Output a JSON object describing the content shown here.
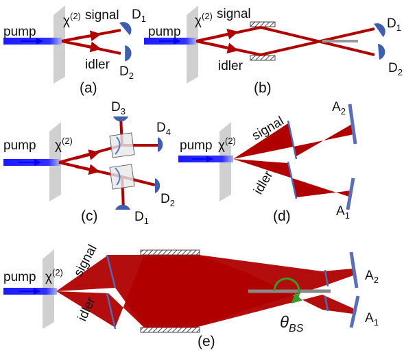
{
  "panels": [
    {
      "label": "(a)",
      "pump": "pump",
      "chi": {
        "main": "χ",
        "sup": "(2)"
      },
      "signal": "signal",
      "idler": "idler",
      "detectors": [
        {
          "main": "D",
          "sub": "1"
        },
        {
          "main": "D",
          "sub": "2"
        }
      ]
    },
    {
      "label": "(b)",
      "pump": "pump",
      "chi": {
        "main": "χ",
        "sup": "(2)"
      },
      "signal": "signal",
      "idler": "idler",
      "detectors": [
        {
          "main": "D",
          "sub": "1"
        },
        {
          "main": "D",
          "sub": "2"
        }
      ]
    },
    {
      "label": "(c)",
      "pump": "pump",
      "chi": {
        "main": "χ",
        "sup": "(2)"
      },
      "detectors": [
        {
          "main": "D",
          "sub": "3"
        },
        {
          "main": "D",
          "sub": "4"
        },
        {
          "main": "D",
          "sub": "2"
        },
        {
          "main": "D",
          "sub": "1"
        }
      ]
    },
    {
      "label": "(d)",
      "pump": "pump",
      "chi": {
        "main": "χ",
        "sup": "(2)"
      },
      "signal": "signal",
      "idler": "idler",
      "analyzers": [
        {
          "main": "A",
          "sub": "2"
        },
        {
          "main": "A",
          "sub": "1"
        }
      ]
    },
    {
      "label": "(e)",
      "pump": "pump",
      "chi": {
        "main": "χ",
        "sup": "(2)"
      },
      "signal": "signal",
      "idler": "idler",
      "analyzers": [
        {
          "main": "A",
          "sub": "2"
        },
        {
          "main": "A",
          "sub": "1"
        }
      ],
      "angle": {
        "main": "θ",
        "sub": "BS"
      }
    }
  ]
}
